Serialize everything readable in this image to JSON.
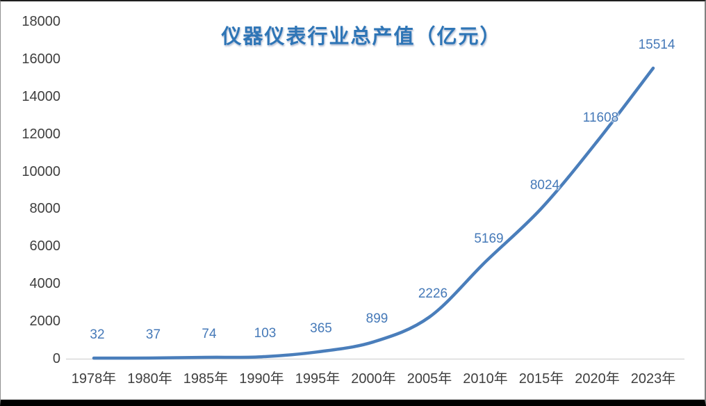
{
  "chart_data": {
    "type": "line",
    "title": "仪器仪表行业总产值（亿元）",
    "categories": [
      "1978年",
      "1980年",
      "1985年",
      "1990年",
      "1995年",
      "2000年",
      "2005年",
      "2010年",
      "2015年",
      "2020年",
      "2023年"
    ],
    "values": [
      32,
      37,
      74,
      103,
      365,
      899,
      2226,
      5169,
      8024,
      11608,
      15514
    ],
    "data_label_texts": [
      "32",
      "37",
      "74",
      "103",
      "365",
      "899",
      "2226",
      "5169",
      "8024",
      "11608",
      "15514"
    ],
    "yticks": [
      0,
      2000,
      4000,
      6000,
      8000,
      10000,
      12000,
      14000,
      16000,
      18000
    ],
    "ylim": [
      0,
      18000
    ],
    "xlabel": "",
    "ylabel": "",
    "grid": false,
    "legend": "none",
    "smooth": true,
    "data_labels": true,
    "colors": {
      "line": "#4a7ebb",
      "data_label": "#4579b8",
      "title": "#2e75b6",
      "axis_text": "#3f3f3f",
      "axis_line": "#d9d9d9"
    }
  }
}
